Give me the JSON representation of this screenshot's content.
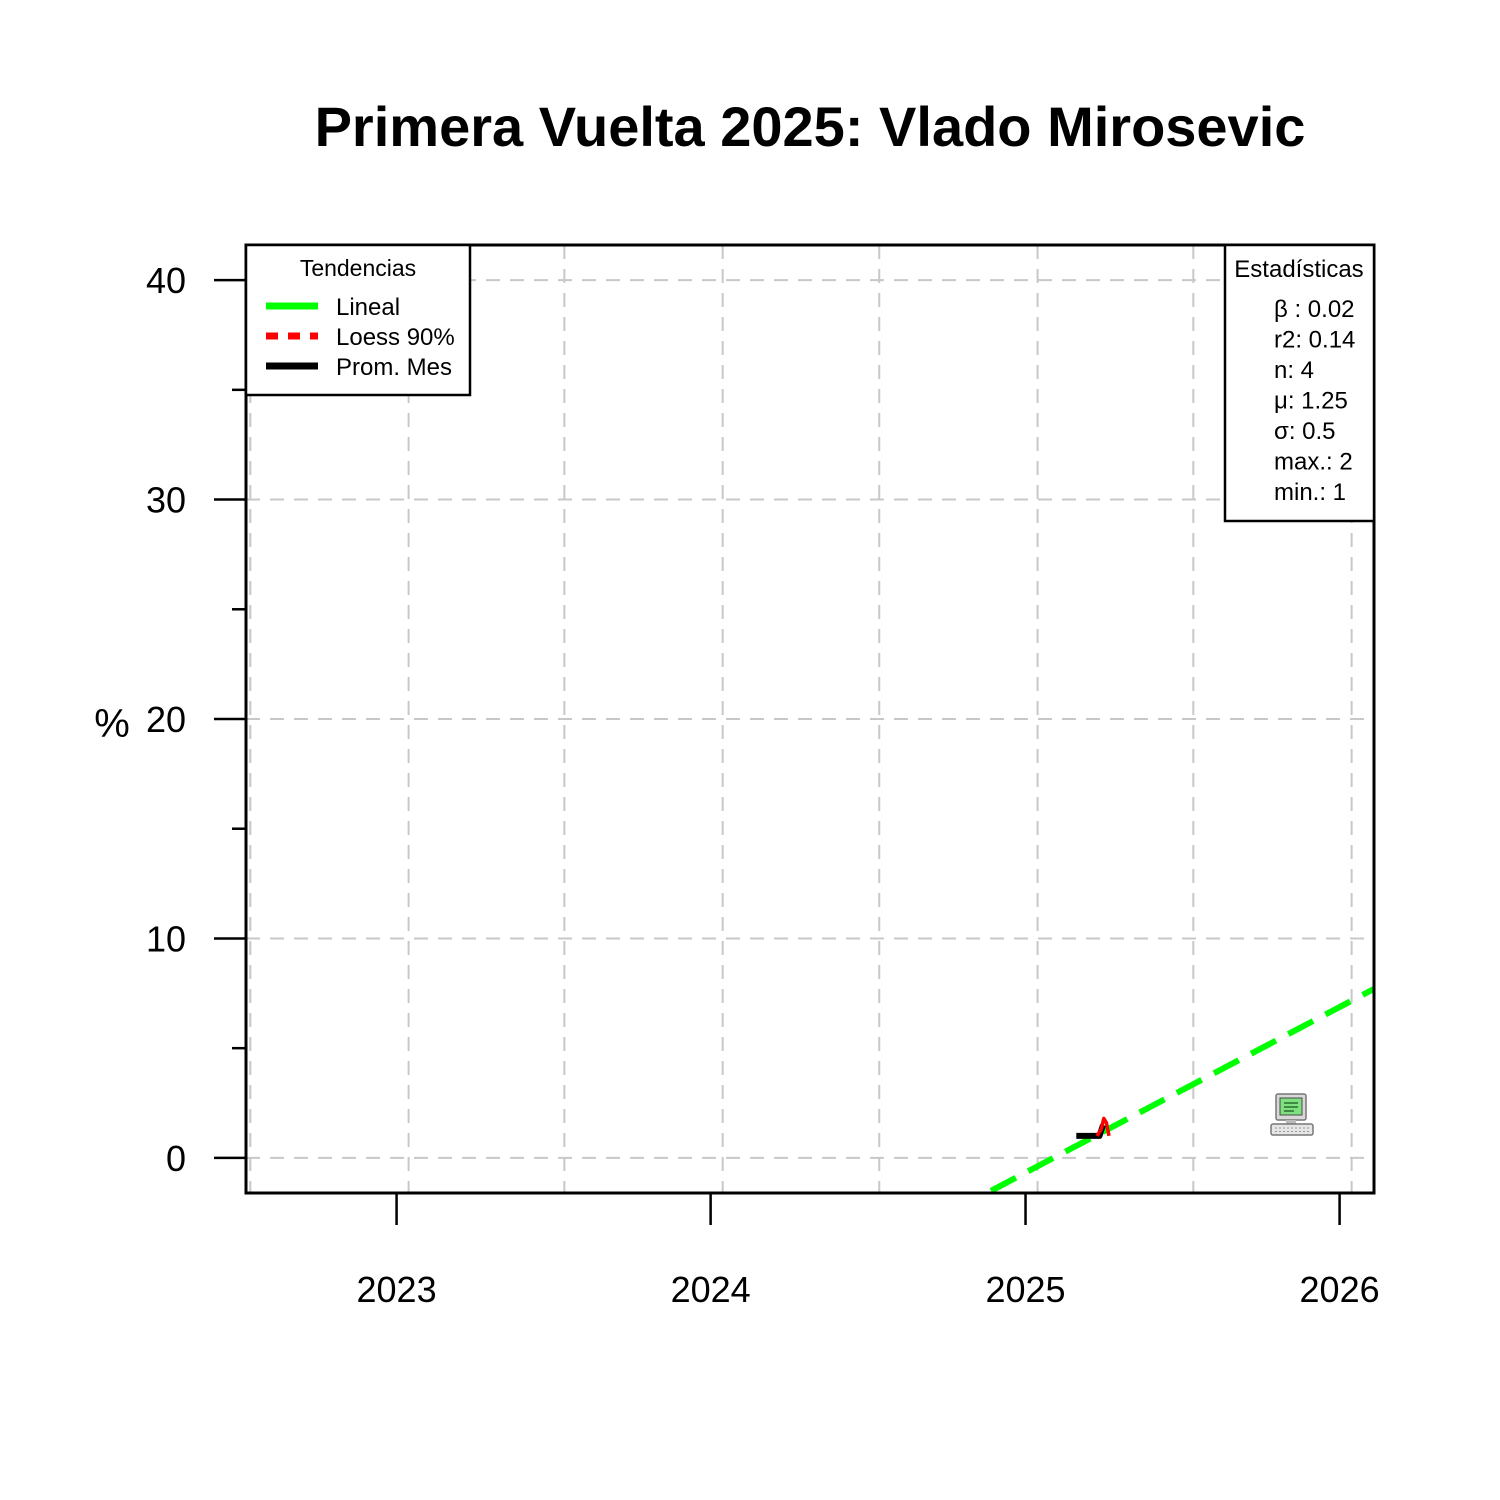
{
  "chart_data": {
    "type": "line",
    "title": "Primera Vuelta 2025: Vlado Mirosevic",
    "xlabel": "",
    "ylabel": "%",
    "x_ticks": [
      "2023",
      "2024",
      "2025",
      "2026"
    ],
    "y_ticks": [
      "0",
      "10",
      "20",
      "30",
      "40"
    ],
    "ylim": [
      -1.6,
      41.6
    ],
    "xlim": [
      "2022-07-10",
      "2026-02-10"
    ],
    "grid": true,
    "series": [
      {
        "name": "Lineal",
        "color": "#00ff00",
        "style": "dashed",
        "points": [
          [
            "2024-11-22",
            -1.5
          ],
          [
            "2026-02-10",
            7.7
          ]
        ]
      },
      {
        "name": "Loess 90%",
        "color": "#ff0000",
        "style": "solid",
        "points": [
          [
            "2025-03-25",
            1.0
          ],
          [
            "2025-03-30",
            1.3
          ],
          [
            "2025-04-02",
            1.8
          ],
          [
            "2025-04-05",
            1.6
          ],
          [
            "2025-04-08",
            1.0
          ]
        ]
      },
      {
        "name": "Prom. Mes",
        "color": "#000000",
        "style": "solid",
        "points": [
          [
            "2025-03-01",
            1.0
          ],
          [
            "2025-03-28",
            1.0
          ],
          [
            "2025-04-01",
            1.5
          ]
        ]
      }
    ],
    "legend": {
      "title": "Tendencias",
      "placement": "top-left",
      "entries": [
        "Lineal",
        "Loess 90%",
        "Prom. Mes"
      ]
    },
    "stats": {
      "title": "Estadísticas",
      "placement": "top-right",
      "lines": [
        "β : 0.02",
        "r2: 0.14",
        "n: 4",
        "μ: 1.25",
        "σ: 0.5",
        "max.: 2",
        "min.: 1"
      ]
    },
    "icon": "computer-icon"
  }
}
